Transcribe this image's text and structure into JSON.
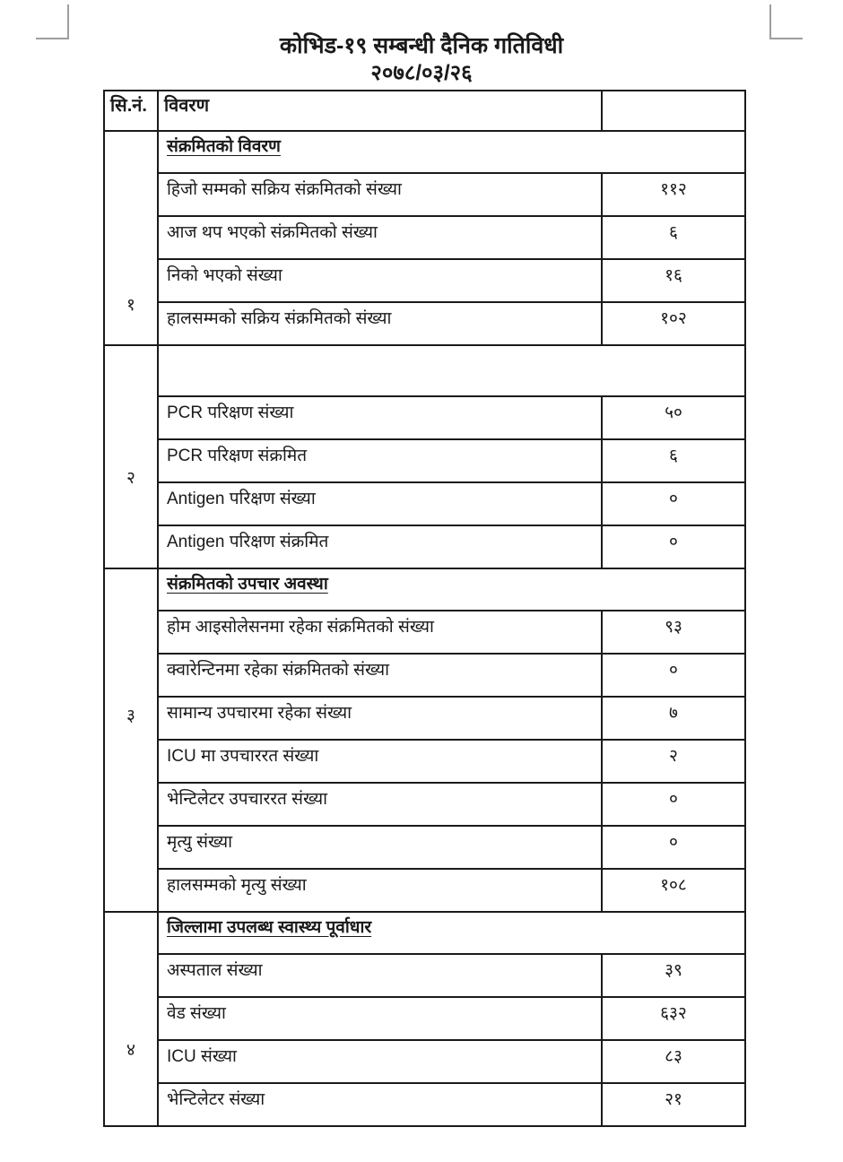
{
  "page": {
    "title": "कोभिड-१९ सम्बन्धी दैनिक गतिविधी",
    "date": "२०७८/०३/२६",
    "text_color": "#1a1a1a",
    "border_color": "#1a1a1a",
    "corner_mark_color": "#9e9e9e"
  },
  "table": {
    "headers": {
      "sn": "सि.नं.",
      "description": "विवरण",
      "value": ""
    },
    "sections": [
      {
        "number": "१",
        "header": "संक्रमितको विवरण",
        "rows": [
          {
            "label": "हिजो सम्मको सक्रिय संक्रमितको संख्या",
            "value": "११२"
          },
          {
            "label": "आज थप भएको संक्रमितको संख्या",
            "value": "६"
          },
          {
            "label": "निको भएको संख्या",
            "value": "१६"
          },
          {
            "label": "हालसम्मको सक्रिय संक्रमितको संख्या",
            "value": "१०२"
          }
        ]
      },
      {
        "number": "२",
        "header": "",
        "rows": [
          {
            "label": "PCR परिक्षण संख्या",
            "value": "५०"
          },
          {
            "label": "PCR परिक्षण संक्रमित",
            "value": "६"
          },
          {
            "label": "Antigen परिक्षण संख्या",
            "value": "०"
          },
          {
            "label": "Antigen परिक्षण संक्रमित",
            "value": "०"
          }
        ]
      },
      {
        "number": "३",
        "header": "संक्रमितको उपचार अवस्था",
        "rows": [
          {
            "label": "होम आइसोलेसनमा रहेका संक्रमितको संख्या",
            "value": "९३"
          },
          {
            "label": "क्वारेन्टिनमा रहेका संक्रमितको संख्या",
            "value": "०"
          },
          {
            "label": "सामान्य उपचारमा रहेका संख्या",
            "value": "७"
          },
          {
            "label": "ICU मा उपचाररत संख्या",
            "value": "२"
          },
          {
            "label": "भेन्टिलेटर उपचाररत संख्या",
            "value": "०"
          },
          {
            "label": "मृत्यु संख्या",
            "value": "०"
          },
          {
            "label": "हालसम्मको मृत्यु संख्या",
            "value": "१०८"
          }
        ]
      },
      {
        "number": "४",
        "header": "जिल्लामा उपलब्ध स्वास्थ्य पूर्वाधार",
        "rows": [
          {
            "label": "अस्पताल संख्या",
            "value": "३९"
          },
          {
            "label": "वेड संख्या",
            "value": "६३२"
          },
          {
            "label": "ICU संख्या",
            "value": "८३"
          },
          {
            "label": "भेन्टिलेटर संख्या",
            "value": "२१"
          }
        ]
      }
    ]
  }
}
